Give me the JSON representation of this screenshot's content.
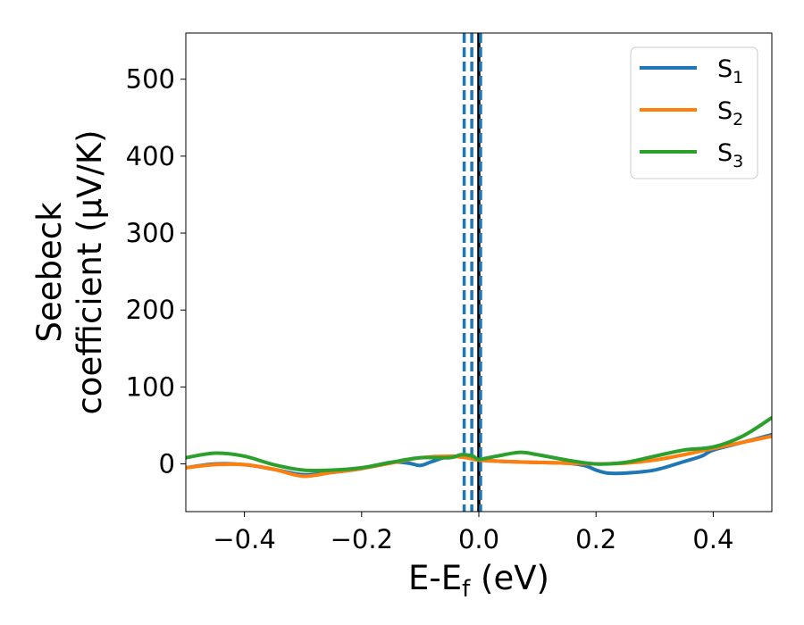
{
  "chart_data": {
    "type": "line",
    "title": "",
    "xlabel": "E-E",
    "xlabel_sub": "f",
    "xlabel_unit": " (eV)",
    "ylabel_line1": "Seebeck",
    "ylabel_line2": "coefficient  (μV/K)",
    "xlim": [
      -0.5,
      0.5
    ],
    "ylim": [
      -62,
      560
    ],
    "xticks": [
      -0.4,
      -0.2,
      0.0,
      0.2,
      0.4
    ],
    "xtick_labels": [
      "−0.4",
      "−0.2",
      "0.0",
      "0.2",
      "0.4"
    ],
    "yticks": [
      0,
      100,
      200,
      300,
      400,
      500
    ],
    "ytick_labels": [
      "0",
      "100",
      "200",
      "300",
      "400",
      "500"
    ],
    "grid": false,
    "legend_position": "top-right",
    "vertical_lines": [
      {
        "x": 0.0,
        "style": "solid",
        "color": "#000000"
      },
      {
        "x": -0.025,
        "style": "dashed",
        "color": "#1f77b4"
      },
      {
        "x": -0.012,
        "style": "dashed",
        "color": "#1f77b4"
      },
      {
        "x": 0.003,
        "style": "dashed",
        "color": "#1f77b4"
      }
    ],
    "series": [
      {
        "name": "S",
        "sub": "1",
        "color": "#1f77b4",
        "x": [
          -0.5,
          -0.45,
          -0.4,
          -0.35,
          -0.3,
          -0.25,
          -0.2,
          -0.15,
          -0.12,
          -0.1,
          -0.08,
          -0.05,
          -0.02,
          0.0,
          0.05,
          0.1,
          0.15,
          0.18,
          0.2,
          0.22,
          0.25,
          0.3,
          0.35,
          0.38,
          0.4,
          0.45,
          0.5
        ],
        "values": [
          -5,
          0,
          -1,
          -7,
          -14,
          -11,
          -6,
          2,
          1,
          -2,
          3,
          10,
          8,
          5,
          3,
          2,
          1,
          -2,
          -8,
          -12,
          -12,
          -8,
          3,
          10,
          18,
          28,
          38
        ]
      },
      {
        "name": "S",
        "sub": "2",
        "color": "#ff7f0e",
        "x": [
          -0.5,
          -0.45,
          -0.4,
          -0.35,
          -0.3,
          -0.25,
          -0.2,
          -0.15,
          -0.1,
          -0.05,
          -0.02,
          0.0,
          0.05,
          0.1,
          0.15,
          0.2,
          0.25,
          0.3,
          0.35,
          0.4,
          0.45,
          0.5
        ],
        "values": [
          -5,
          -1,
          -1,
          -7,
          -16,
          -11,
          -6,
          1,
          8,
          10,
          8,
          5,
          3,
          2,
          1,
          0,
          1,
          5,
          12,
          20,
          28,
          36
        ]
      },
      {
        "name": "S",
        "sub": "3",
        "color": "#2ca02c",
        "x": [
          -0.5,
          -0.45,
          -0.4,
          -0.35,
          -0.3,
          -0.25,
          -0.2,
          -0.15,
          -0.1,
          -0.05,
          -0.03,
          -0.01,
          0.0,
          0.03,
          0.07,
          0.1,
          0.15,
          0.2,
          0.25,
          0.3,
          0.35,
          0.4,
          0.45,
          0.5
        ],
        "values": [
          8,
          14,
          10,
          -1,
          -8,
          -8,
          -5,
          2,
          8,
          8,
          12,
          10,
          6,
          10,
          15,
          12,
          5,
          0,
          2,
          10,
          18,
          22,
          36,
          60
        ]
      }
    ]
  }
}
